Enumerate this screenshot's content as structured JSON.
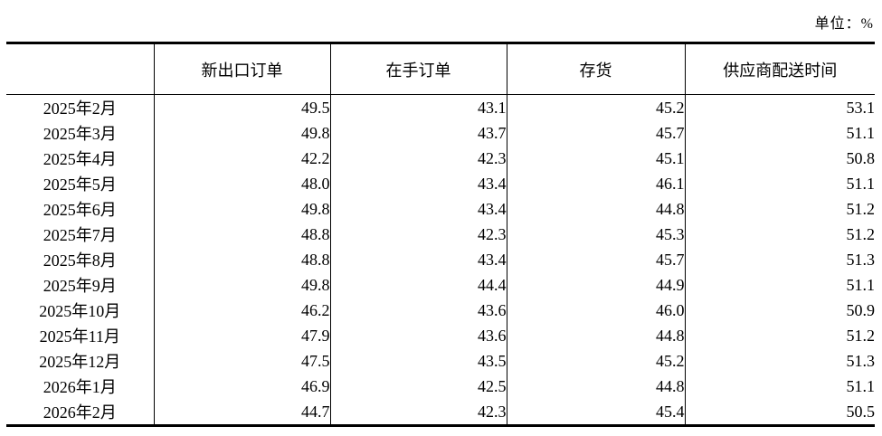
{
  "page": {
    "unit_label": "单位：%"
  },
  "colors": {
    "text": "#000000",
    "background": "#ffffff",
    "border": "#000000"
  },
  "table": {
    "headers": [
      "",
      "新出口订单",
      "在手订单",
      "存货",
      "供应商配送时间"
    ],
    "rows": [
      {
        "month": "2025年2月",
        "values": [
          "49.5",
          "43.1",
          "45.2",
          "53.1"
        ]
      },
      {
        "month": "2025年3月",
        "values": [
          "49.8",
          "43.7",
          "45.7",
          "51.1"
        ]
      },
      {
        "month": "2025年4月",
        "values": [
          "42.2",
          "42.3",
          "45.1",
          "50.8"
        ]
      },
      {
        "month": "2025年5月",
        "values": [
          "48.0",
          "43.4",
          "46.1",
          "51.1"
        ]
      },
      {
        "month": "2025年6月",
        "values": [
          "49.8",
          "43.4",
          "44.8",
          "51.2"
        ]
      },
      {
        "month": "2025年7月",
        "values": [
          "48.8",
          "42.3",
          "45.3",
          "51.2"
        ]
      },
      {
        "month": "2025年8月",
        "values": [
          "48.8",
          "43.4",
          "45.7",
          "51.3"
        ]
      },
      {
        "month": "2025年9月",
        "values": [
          "49.8",
          "44.4",
          "44.9",
          "51.1"
        ]
      },
      {
        "month": "2025年10月",
        "values": [
          "46.2",
          "43.6",
          "46.0",
          "50.9"
        ]
      },
      {
        "month": "2025年11月",
        "values": [
          "47.9",
          "43.6",
          "44.8",
          "51.2"
        ]
      },
      {
        "month": "2025年12月",
        "values": [
          "47.5",
          "43.5",
          "45.2",
          "51.3"
        ]
      },
      {
        "month": "2026年1月",
        "values": [
          "46.9",
          "42.5",
          "44.8",
          "51.1"
        ]
      },
      {
        "month": "2026年2月",
        "values": [
          "44.7",
          "42.3",
          "45.4",
          "50.5"
        ]
      }
    ]
  }
}
